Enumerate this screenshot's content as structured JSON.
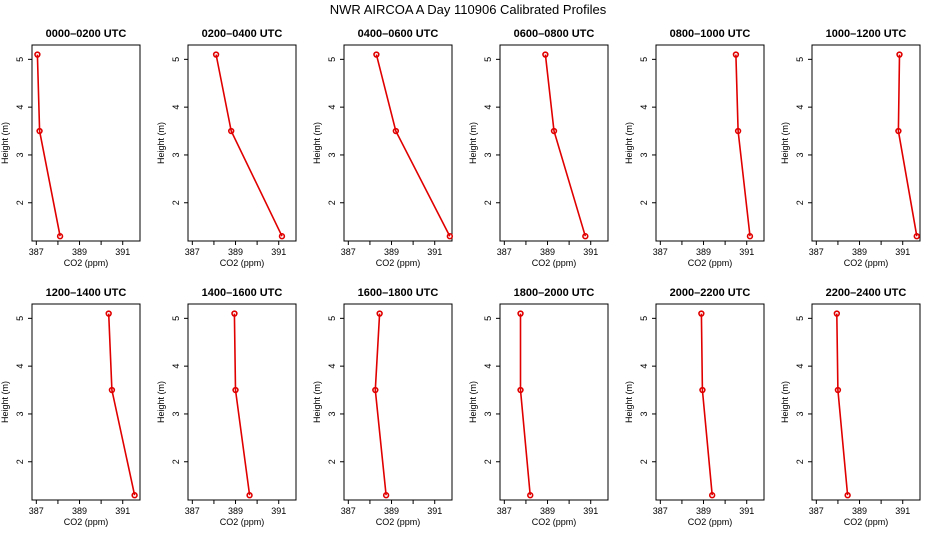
{
  "title": "NWR AIRCOA A  Day 110906  Calibrated Profiles",
  "chart_data": {
    "type": "line",
    "title": "NWR AIRCOA A  Day 110906  Calibrated Profiles",
    "xlabel": "CO2 (ppm)",
    "ylabel": "Height (m)",
    "xlim": [
      386.8,
      391.8
    ],
    "ylim": [
      1.2,
      5.3
    ],
    "xticks": [
      387,
      388,
      389,
      390,
      391
    ],
    "xtick_labels": [
      "387",
      "",
      "389",
      "",
      "391"
    ],
    "yticks": [
      2,
      3,
      4,
      5
    ],
    "ytick_labels": [
      "2",
      "3",
      "4",
      "5"
    ],
    "grid": false,
    "layout": "2 rows x 6 columns",
    "panels": [
      {
        "title": "0000–0200 UTC",
        "co2": [
          387.05,
          387.15,
          388.1
        ],
        "height": [
          5.1,
          3.5,
          1.3
        ]
      },
      {
        "title": "0200–0400 UTC",
        "co2": [
          388.1,
          388.8,
          391.15
        ],
        "height": [
          5.1,
          3.5,
          1.3
        ]
      },
      {
        "title": "0400–0600 UTC",
        "co2": [
          388.3,
          389.2,
          391.7
        ],
        "height": [
          5.1,
          3.5,
          1.3
        ]
      },
      {
        "title": "0600–0800 UTC",
        "co2": [
          388.9,
          389.3,
          390.75
        ],
        "height": [
          5.1,
          3.5,
          1.3
        ]
      },
      {
        "title": "0800–1000 UTC",
        "co2": [
          390.5,
          390.6,
          391.15
        ],
        "height": [
          5.1,
          3.5,
          1.3
        ]
      },
      {
        "title": "1000–1200 UTC",
        "co2": [
          390.85,
          390.8,
          391.65
        ],
        "height": [
          5.1,
          3.5,
          1.3
        ]
      },
      {
        "title": "1200–1400 UTC",
        "co2": [
          390.35,
          390.5,
          391.55
        ],
        "height": [
          5.1,
          3.5,
          1.3
        ]
      },
      {
        "title": "1400–1600 UTC",
        "co2": [
          388.95,
          389.0,
          389.65
        ],
        "height": [
          5.1,
          3.5,
          1.3
        ]
      },
      {
        "title": "1600–1800 UTC",
        "co2": [
          388.45,
          388.25,
          388.75
        ],
        "height": [
          5.1,
          3.5,
          1.3
        ]
      },
      {
        "title": "1800–2000 UTC",
        "co2": [
          387.75,
          387.75,
          388.2
        ],
        "height": [
          5.1,
          3.5,
          1.3
        ]
      },
      {
        "title": "2000–2200 UTC",
        "co2": [
          388.9,
          388.95,
          389.4
        ],
        "height": [
          5.1,
          3.5,
          1.3
        ]
      },
      {
        "title": "2200–2400 UTC",
        "co2": [
          387.95,
          388.0,
          388.45
        ],
        "height": [
          5.1,
          3.5,
          1.3
        ]
      }
    ],
    "series_color": "#e00000"
  }
}
